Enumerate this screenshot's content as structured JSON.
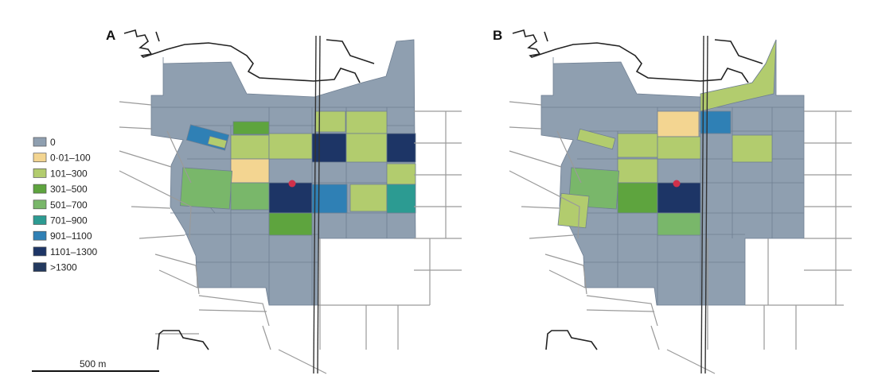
{
  "panels": [
    {
      "label": "A",
      "blocks": [
        {
          "id": "a-lt-blue-1",
          "category": "901-1100"
        },
        {
          "id": "a-lt-green-1",
          "category": "101-300"
        },
        {
          "id": "a-green-top",
          "category": "301-500"
        },
        {
          "id": "a-r1-c1",
          "category": "101-300"
        },
        {
          "id": "a-r1-c2",
          "category": "101-300"
        },
        {
          "id": "a-r1-c4",
          "category": "101-300"
        },
        {
          "id": "a-r1-c5",
          "category": "101-300"
        },
        {
          "id": "a-r2-c2",
          "category": "1101-1300"
        },
        {
          "id": "a-r2-c5",
          "category": "1101-1300"
        },
        {
          "id": "a-r2-c4",
          "category": "101-300"
        },
        {
          "id": "a-orange",
          "category": "0.01-100"
        },
        {
          "id": "a-r3-c0",
          "category": "501-700"
        },
        {
          "id": "a-r3-c1",
          "category": "501-700"
        },
        {
          "id": "a-r3-c2",
          "category": "1101-1300"
        },
        {
          "id": "a-r3-c3",
          "category": "901-1100"
        },
        {
          "id": "a-r3-c4",
          "category": "101-300"
        },
        {
          "id": "a-r3-c5",
          "category": "701-900"
        },
        {
          "id": "a-r2-c6",
          "category": "101-300"
        },
        {
          "id": "a-r4-c2",
          "category": "301-500"
        }
      ]
    },
    {
      "label": "B",
      "blocks": [
        {
          "id": "b-top-strip",
          "category": "101-300"
        },
        {
          "id": "b-r1-c2",
          "category": "0.01-100"
        },
        {
          "id": "b-r1-c3",
          "category": "901-1100"
        },
        {
          "id": "b-r2-c1",
          "category": "101-300"
        },
        {
          "id": "b-r2-c2",
          "category": "101-300"
        },
        {
          "id": "b-r2-c5",
          "category": "101-300"
        },
        {
          "id": "b-r2-c0",
          "category": "101-300"
        },
        {
          "id": "b-r3-c1",
          "category": "101-300"
        },
        {
          "id": "b-r4-c0",
          "category": "501-700"
        },
        {
          "id": "b-r4-c1",
          "category": "301-500"
        },
        {
          "id": "b-r4-c2",
          "category": "1101-1300"
        },
        {
          "id": "b-r5-c0",
          "category": "101-300"
        },
        {
          "id": "b-r5-c2",
          "category": "501-700"
        }
      ]
    }
  ],
  "legend": {
    "items": [
      {
        "label": "0",
        "color": "#8f9fb0"
      },
      {
        "label": "0·01–100",
        "color": "#f3d591"
      },
      {
        "label": "101–300",
        "color": "#b2cc6e"
      },
      {
        "label": "301–500",
        "color": "#5ea43e"
      },
      {
        "label": "501–700",
        "color": "#79b76a"
      },
      {
        "label": "701–900",
        "color": "#2c9b92"
      },
      {
        "label": "901–1100",
        "color": "#2f80b5"
      },
      {
        "label": "1101–1300",
        "color": "#1d3566"
      },
      {
        "label": ">1300",
        "color": "#23395e"
      }
    ]
  },
  "category_colors": {
    "0": "#8f9fb0",
    "0.01-100": "#f3d591",
    "101-300": "#b2cc6e",
    "301-500": "#5ea43e",
    "501-700": "#79b76a",
    "701-900": "#2c9b92",
    "901-1100": "#2f80b5",
    "1101-1300": "#1d3566",
    ">1300": "#23395e"
  },
  "scale_bar": {
    "label": "500 m"
  },
  "marker_color": "#d0304a"
}
